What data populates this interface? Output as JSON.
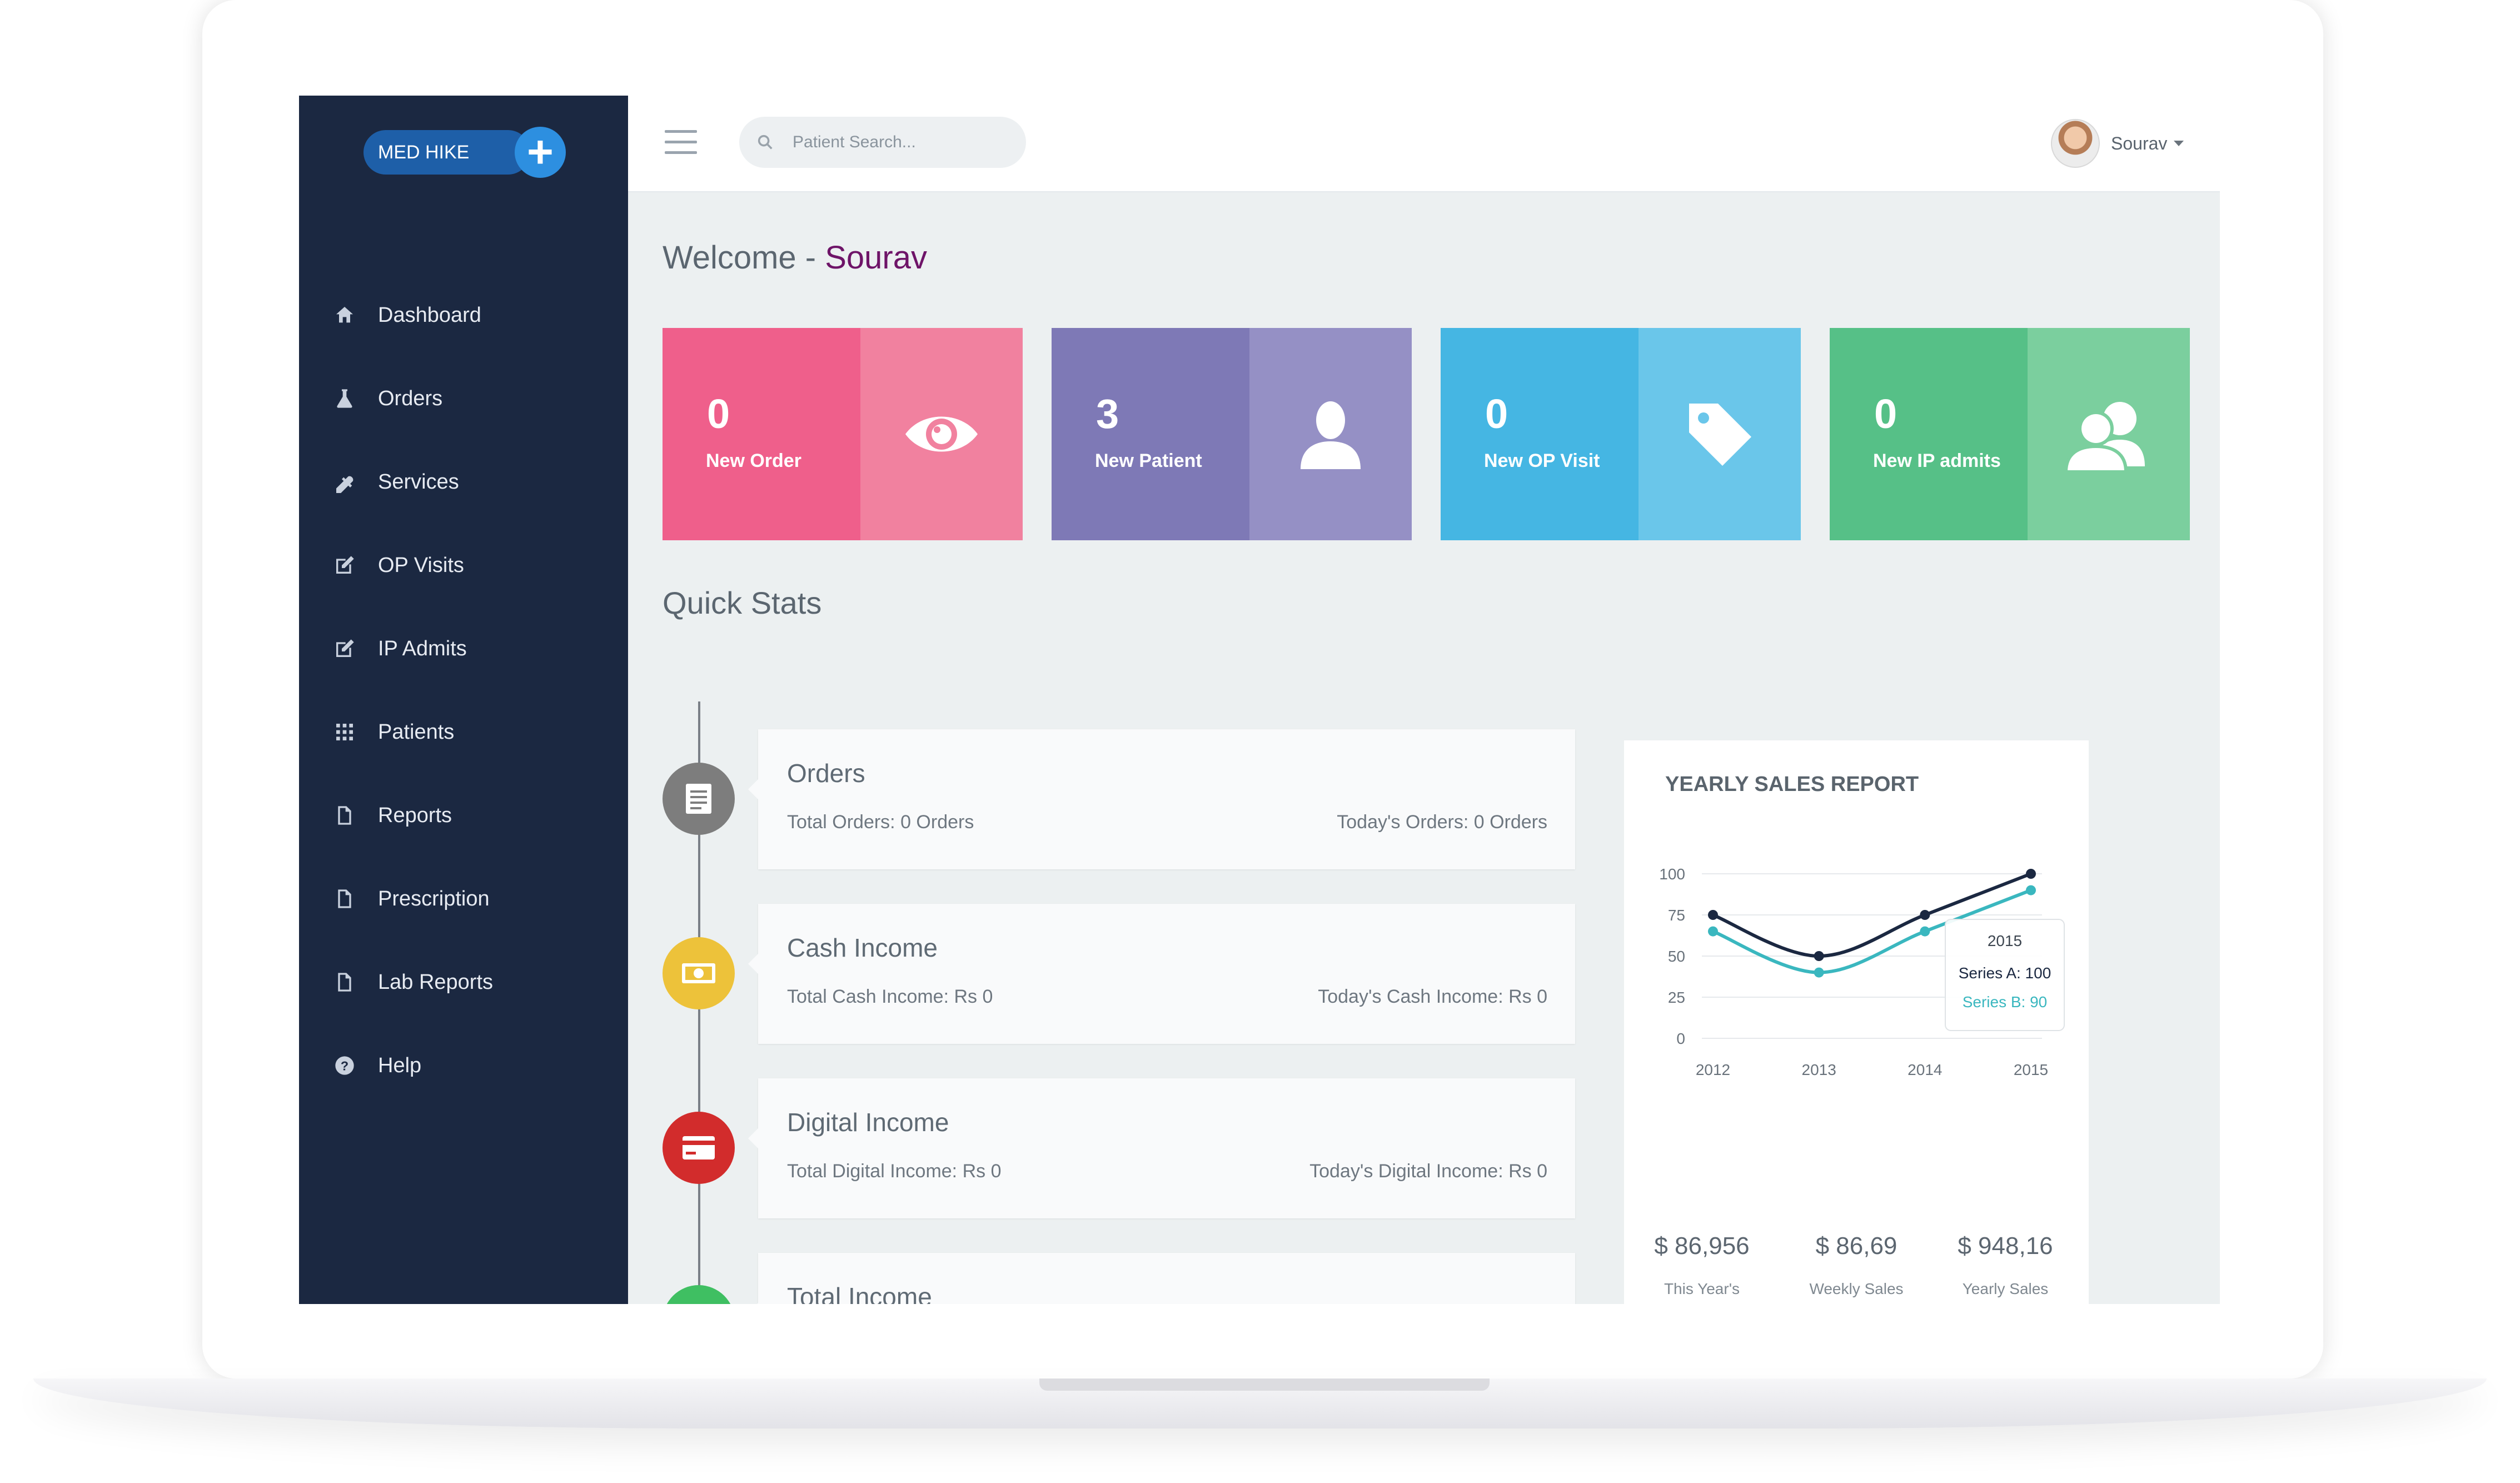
{
  "app": {
    "logo_text": "MED HIKE",
    "logo_cross": "+"
  },
  "sidebar": {
    "items": [
      {
        "label": "Dashboard",
        "icon": "home-icon"
      },
      {
        "label": "Orders",
        "icon": "flask-icon"
      },
      {
        "label": "Services",
        "icon": "tools-icon"
      },
      {
        "label": "OP Visits",
        "icon": "edit-icon"
      },
      {
        "label": "IP Admits",
        "icon": "edit-icon"
      },
      {
        "label": "Patients",
        "icon": "grid-icon"
      },
      {
        "label": "Reports",
        "icon": "file-icon"
      },
      {
        "label": "Prescription",
        "icon": "file-icon"
      },
      {
        "label": "Lab Reports",
        "icon": "file-icon"
      },
      {
        "label": "Help",
        "icon": "help-icon"
      }
    ]
  },
  "header": {
    "search_placeholder": "Patient Search...",
    "user_name": "Sourav"
  },
  "welcome": {
    "prefix": "Welcome - ",
    "name": "Sourav"
  },
  "stat_cards": [
    {
      "value": "0",
      "label": "New Order",
      "icon": "eye-icon",
      "color_left": "#ef5f8b",
      "color_right": "#f1819f"
    },
    {
      "value": "3",
      "label": "New Patient",
      "icon": "user-icon",
      "color_left": "#7e79b6",
      "color_right": "#9590c5"
    },
    {
      "value": "0",
      "label": "New OP Visit",
      "icon": "tag-icon",
      "color_left": "#45b6e3",
      "color_right": "#6ac6ea"
    },
    {
      "value": "0",
      "label": "New IP admits",
      "icon": "users-icon",
      "color_left": "#56c087",
      "color_right": "#7bcf9e"
    }
  ],
  "quick_stats": {
    "heading": "Quick Stats",
    "items": [
      {
        "title": "Orders",
        "total": "Total Orders: 0 Orders",
        "today": "Today's Orders: 0 Orders",
        "icon": "document-icon",
        "color": "#7d7d7d"
      },
      {
        "title": "Cash Income",
        "total": "Total Cash Income: Rs 0",
        "today": "Today's Cash Income: Rs 0",
        "icon": "cash-icon",
        "color": "#edc23a"
      },
      {
        "title": "Digital Income",
        "total": "Total Digital Income: Rs 0",
        "today": "Today's Digital Income: Rs 0",
        "icon": "credit-card-icon",
        "color": "#d22c2c"
      },
      {
        "title": "Total Income",
        "total": "",
        "today": "",
        "icon": "",
        "color": "#3fbf62"
      }
    ]
  },
  "sales_report": {
    "title": "YEARLY SALES REPORT",
    "tooltip": {
      "year": "2015",
      "series_a": "Series A: 100",
      "series_b": "Series B: 90"
    },
    "summary": [
      {
        "value": "$ 86,956",
        "label": "This Year's"
      },
      {
        "value": "$ 86,69",
        "label": "Weekly Sales"
      },
      {
        "value": "$ 948,16",
        "label": "Yearly Sales"
      }
    ]
  },
  "chart_data": {
    "type": "line",
    "title": "YEARLY SALES REPORT",
    "x": [
      2012,
      2013,
      2014,
      2015
    ],
    "y_ticks": [
      0,
      25,
      50,
      75,
      100
    ],
    "ylim": [
      0,
      100
    ],
    "grid": true,
    "series": [
      {
        "name": "Series A",
        "values": [
          75,
          50,
          75,
          100
        ],
        "color": "#1b2841"
      },
      {
        "name": "Series B",
        "values": [
          65,
          40,
          65,
          90
        ],
        "color": "#3ab7bf"
      }
    ]
  }
}
